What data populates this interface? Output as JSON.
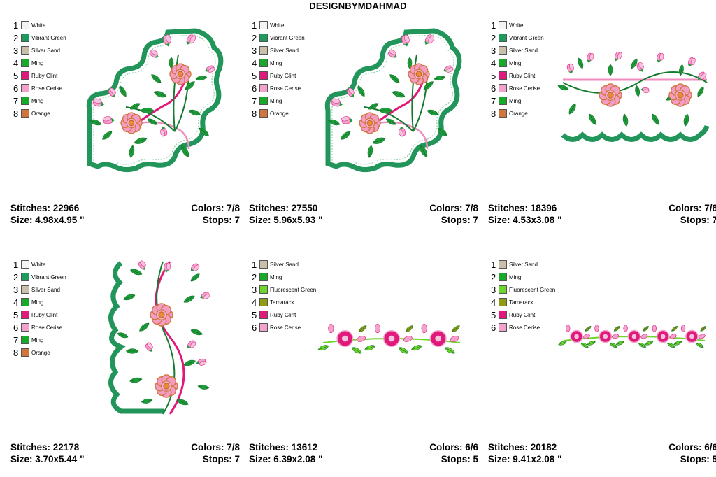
{
  "header": {
    "title": "DESIGNBYMDAHMAD"
  },
  "palette": {
    "White": "#f4f4f4",
    "Vibrant Green": "#1e9a5c",
    "Silver Sand": "#c9bfaa",
    "Ming": "#17a82c",
    "Ruby Glint": "#e0197a",
    "Rose Cerise": "#f2a2cc",
    "Orange": "#d2753c",
    "Fluorescent Green": "#6ed62a",
    "Tamarack": "#8f9b12"
  },
  "designs": [
    {
      "colors_list": [
        {
          "num": "1",
          "name": "White"
        },
        {
          "num": "2",
          "name": "Vibrant Green"
        },
        {
          "num": "3",
          "name": "Silver Sand"
        },
        {
          "num": "4",
          "name": "Ming"
        },
        {
          "num": "5",
          "name": "Ruby Glint"
        },
        {
          "num": "6",
          "name": "Rose Cerise"
        },
        {
          "num": "7",
          "name": "Ming"
        },
        {
          "num": "8",
          "name": "Orange"
        }
      ],
      "stitches": "Stitches: 22966",
      "size": "Size: 4.98x4.95 \"",
      "colors": "Colors: 7/8",
      "stops": "Stops: 7"
    },
    {
      "colors_list": [
        {
          "num": "1",
          "name": "White"
        },
        {
          "num": "2",
          "name": "Vibrant Green"
        },
        {
          "num": "3",
          "name": "Silver Sand"
        },
        {
          "num": "4",
          "name": "Ming"
        },
        {
          "num": "5",
          "name": "Ruby Glint"
        },
        {
          "num": "6",
          "name": "Rose Cerise"
        },
        {
          "num": "7",
          "name": "Ming"
        },
        {
          "num": "8",
          "name": "Orange"
        }
      ],
      "stitches": "Stitches: 27550",
      "size": "Size: 5.96x5.93 \"",
      "colors": "Colors: 7/8",
      "stops": "Stops: 7"
    },
    {
      "colors_list": [
        {
          "num": "1",
          "name": "White"
        },
        {
          "num": "2",
          "name": "Vibrant Green"
        },
        {
          "num": "3",
          "name": "Silver Sand"
        },
        {
          "num": "4",
          "name": "Ming"
        },
        {
          "num": "5",
          "name": "Ruby Glint"
        },
        {
          "num": "6",
          "name": "Rose Cerise"
        },
        {
          "num": "7",
          "name": "Ming"
        },
        {
          "num": "8",
          "name": "Orange"
        }
      ],
      "stitches": "Stitches: 18396",
      "size": "Size: 4.53x3.08 \"",
      "colors": "Colors: 7/8",
      "stops": "Stops: 7"
    },
    {
      "colors_list": [
        {
          "num": "1",
          "name": "White"
        },
        {
          "num": "2",
          "name": "Vibrant Green"
        },
        {
          "num": "3",
          "name": "Silver Sand"
        },
        {
          "num": "4",
          "name": "Ming"
        },
        {
          "num": "5",
          "name": "Ruby Glint"
        },
        {
          "num": "6",
          "name": "Rose Cerise"
        },
        {
          "num": "7",
          "name": "Ming"
        },
        {
          "num": "8",
          "name": "Orange"
        }
      ],
      "stitches": "Stitches: 22178",
      "size": "Size: 3.70x5.44 \"",
      "colors": "Colors: 7/8",
      "stops": "Stops: 7"
    },
    {
      "colors_list": [
        {
          "num": "1",
          "name": "Silver Sand"
        },
        {
          "num": "2",
          "name": "Ming"
        },
        {
          "num": "3",
          "name": "Fluorescent Green"
        },
        {
          "num": "4",
          "name": "Tamarack"
        },
        {
          "num": "5",
          "name": "Ruby Glint"
        },
        {
          "num": "6",
          "name": "Rose Cerise"
        }
      ],
      "stitches": "Stitches: 13612",
      "size": "Size: 6.39x2.08 \"",
      "colors": "Colors: 6/6",
      "stops": "Stops: 5"
    },
    {
      "colors_list": [
        {
          "num": "1",
          "name": "Silver Sand"
        },
        {
          "num": "2",
          "name": "Ming"
        },
        {
          "num": "3",
          "name": "Fluorescent Green"
        },
        {
          "num": "4",
          "name": "Tamarack"
        },
        {
          "num": "5",
          "name": "Ruby Glint"
        },
        {
          "num": "6",
          "name": "Rose Cerise"
        }
      ],
      "stitches": "Stitches: 20182",
      "size": "Size: 9.41x2.08 \"",
      "colors": "Colors: 6/6",
      "stops": "Stops: 5"
    }
  ]
}
